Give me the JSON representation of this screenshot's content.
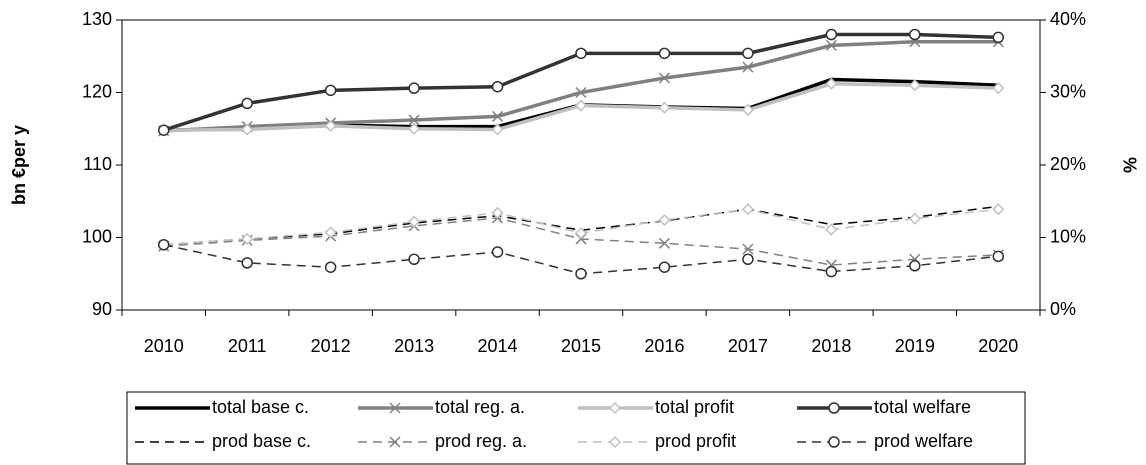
{
  "chart_data": {
    "type": "line",
    "y_label": "bn €per y",
    "y2_label": "%",
    "categories": [
      "2010",
      "2011",
      "2012",
      "2013",
      "2014",
      "2015",
      "2016",
      "2017",
      "2018",
      "2019",
      "2020"
    ],
    "ylim": [
      90,
      130
    ],
    "yticks": [
      90,
      100,
      110,
      120,
      130
    ],
    "y2lim": [
      0,
      40
    ],
    "y2ticks": [
      {
        "value": 0,
        "label": "0%"
      },
      {
        "value": 10,
        "label": "10%"
      },
      {
        "value": 20,
        "label": "20%"
      },
      {
        "value": 30,
        "label": "30%"
      },
      {
        "value": 40,
        "label": "40%"
      }
    ],
    "grid": false,
    "legend": "bottom",
    "series": [
      {
        "name": "total base c.",
        "color": "#000000",
        "dash": false,
        "marker": "none",
        "values": [
          114.8,
          115.0,
          115.5,
          115.3,
          115.3,
          118.3,
          118.0,
          117.8,
          121.8,
          121.5,
          121.0
        ]
      },
      {
        "name": "total reg. a.",
        "color": "#808080",
        "dash": false,
        "marker": "x",
        "values": [
          114.7,
          115.3,
          115.8,
          116.2,
          116.7,
          120.0,
          122.0,
          123.5,
          126.5,
          127.0,
          127.0
        ]
      },
      {
        "name": "total profit",
        "color": "#c0c0c0",
        "dash": false,
        "marker": "diamond",
        "values": [
          114.8,
          114.9,
          115.4,
          115.0,
          114.9,
          118.2,
          117.9,
          117.6,
          121.2,
          121.0,
          120.6
        ]
      },
      {
        "name": "total welfare",
        "color": "#333333",
        "dash": false,
        "marker": "circle",
        "values": [
          114.8,
          118.5,
          120.3,
          120.6,
          120.8,
          125.4,
          125.4,
          125.4,
          128.0,
          128.0,
          127.6
        ]
      },
      {
        "name": "prod base c.",
        "color": "#000000",
        "dash": true,
        "marker": "none",
        "axis": "y2",
        "values": [
          9.0,
          9.8,
          10.5,
          12.0,
          13.0,
          11.0,
          12.3,
          13.9,
          11.8,
          12.8,
          14.3
        ]
      },
      {
        "name": "prod reg. a.",
        "color": "#808080",
        "dash": true,
        "marker": "x",
        "axis": "y2",
        "values": [
          8.8,
          9.6,
          10.2,
          11.6,
          12.7,
          9.8,
          9.2,
          8.4,
          6.2,
          7.0,
          7.6
        ]
      },
      {
        "name": "prod profit",
        "color": "#c0c0c0",
        "dash": true,
        "marker": "diamond",
        "axis": "y2",
        "values": [
          9.0,
          9.8,
          10.7,
          12.2,
          13.4,
          10.6,
          12.4,
          13.9,
          11.1,
          12.6,
          13.9
        ]
      },
      {
        "name": "prod welfare",
        "color": "#333333",
        "dash": true,
        "marker": "circle",
        "axis": "y2",
        "values": [
          9.0,
          6.5,
          5.9,
          7.0,
          8.0,
          5.0,
          5.9,
          7.0,
          5.3,
          6.1,
          7.4
        ]
      }
    ]
  }
}
